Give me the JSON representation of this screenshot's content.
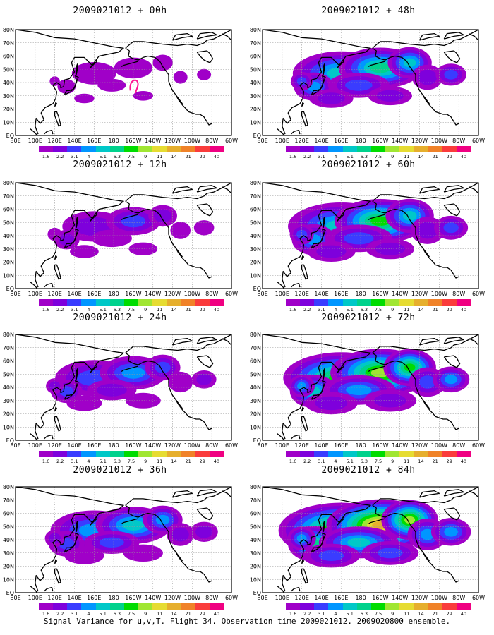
{
  "chart_data": {
    "type": "heatmap",
    "caption": "Signal Variance for u,v,T. Flight 34. Observation time 2009021012. 2009020800 ensemble.",
    "colorbar": {
      "levels": [
        "1.6",
        "2.2",
        "3.1",
        "4",
        "5.1",
        "6.3",
        "7.5",
        "9",
        "11",
        "14",
        "21",
        "29",
        "40"
      ],
      "colors": [
        "#a000c8",
        "#7e00dc",
        "#3a3cff",
        "#0096ff",
        "#00c8c8",
        "#00d28c",
        "#00dc00",
        "#a0e632",
        "#e6dc32",
        "#e6af2d",
        "#f08228",
        "#fa3c3c",
        "#f00082"
      ]
    },
    "axes": {
      "x_ticks": [
        "80E",
        "100E",
        "120E",
        "140E",
        "160E",
        "180",
        "160W",
        "140W",
        "120W",
        "100W",
        "80W",
        "60W"
      ],
      "y_ticks": [
        "EQ",
        "10N",
        "20N",
        "30N",
        "40N",
        "50N",
        "60N",
        "70N",
        "80N"
      ],
      "xlim": [
        "80E",
        "60W"
      ],
      "ylim": [
        "EQ",
        "80N"
      ],
      "grid": true
    },
    "panels": [
      {
        "title": "2009021012 + 00h",
        "lead_hours": 0,
        "spread": 0.15
      },
      {
        "title": "2009021012 + 12h",
        "lead_hours": 12,
        "spread": 0.35
      },
      {
        "title": "2009021012 + 24h",
        "lead_hours": 24,
        "spread": 0.5
      },
      {
        "title": "2009021012 + 36h",
        "lead_hours": 36,
        "spread": 0.6
      },
      {
        "title": "2009021012 + 48h",
        "lead_hours": 48,
        "spread": 0.7
      },
      {
        "title": "2009021012 + 60h",
        "lead_hours": 60,
        "spread": 0.8
      },
      {
        "title": "2009021012 + 72h",
        "lead_hours": 72,
        "spread": 0.9
      },
      {
        "title": "2009021012 + 84h",
        "lead_hours": 84,
        "spread": 1.0
      }
    ]
  }
}
